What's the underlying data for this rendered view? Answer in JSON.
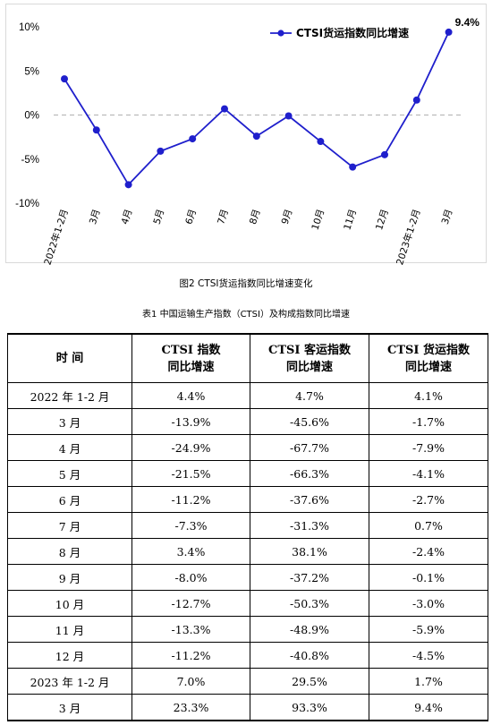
{
  "chart_data": {
    "type": "line",
    "categories": [
      "2022年1-2月",
      "3月",
      "4月",
      "5月",
      "6月",
      "7月",
      "8月",
      "9月",
      "10月",
      "11月",
      "12月",
      "2023年1-2月",
      "3月"
    ],
    "series": [
      {
        "name": "CTSI货运指数同比增速",
        "values": [
          4.1,
          -1.7,
          -7.9,
          -4.1,
          -2.7,
          0.7,
          -2.4,
          -0.1,
          -3.0,
          -5.9,
          -4.5,
          1.7,
          9.4
        ],
        "color": "#1f1fcc"
      }
    ],
    "yticks": [
      "10%",
      "5%",
      "0%",
      "-5%",
      "-10%"
    ],
    "ylim": [
      -10,
      10
    ],
    "last_point_label": "9.4%",
    "zero_line": "dashed",
    "grid": false,
    "legend_position": "top-right"
  },
  "figure_caption": "图2  CTSI货运指数同比增速变化",
  "table": {
    "caption": "表1 中国运输生产指数（CTSI）及构成指数同比增速",
    "headers": [
      [
        "时    间"
      ],
      [
        "CTSI 指数",
        "同比增速"
      ],
      [
        "CTSI 客运指数",
        "同比增速"
      ],
      [
        "CTSI 货运指数",
        "同比增速"
      ]
    ],
    "rows": [
      [
        "2022 年 1-2 月",
        "4.4%",
        "4.7%",
        "4.1%"
      ],
      [
        "3 月",
        "-13.9%",
        "-45.6%",
        "-1.7%"
      ],
      [
        "4 月",
        "-24.9%",
        "-67.7%",
        "-7.9%"
      ],
      [
        "5 月",
        "-21.5%",
        "-66.3%",
        "-4.1%"
      ],
      [
        "6 月",
        "-11.2%",
        "-37.6%",
        "-2.7%"
      ],
      [
        "7 月",
        "-7.3%",
        "-31.3%",
        "0.7%"
      ],
      [
        "8 月",
        "3.4%",
        "38.1%",
        "-2.4%"
      ],
      [
        "9 月",
        "-8.0%",
        "-37.2%",
        "-0.1%"
      ],
      [
        "10 月",
        "-12.7%",
        "-50.3%",
        "-3.0%"
      ],
      [
        "11 月",
        "-13.3%",
        "-48.9%",
        "-5.9%"
      ],
      [
        "12 月",
        "-11.2%",
        "-40.8%",
        "-4.5%"
      ],
      [
        "2023 年 1-2 月",
        "7.0%",
        "29.5%",
        "1.7%"
      ],
      [
        "3 月",
        "23.3%",
        "93.3%",
        "9.4%"
      ]
    ]
  }
}
